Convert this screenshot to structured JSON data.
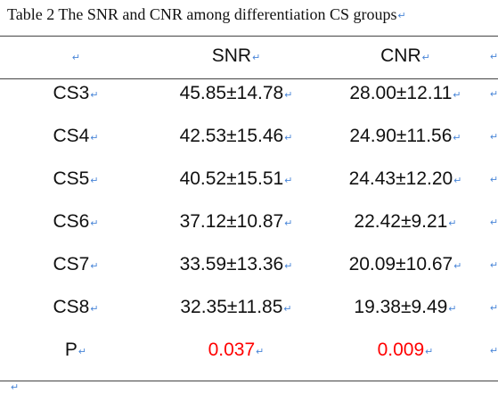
{
  "caption": "Table 2 The SNR and CNR among differentiation CS groups",
  "mark": "↵",
  "header": {
    "col0": "",
    "col1": "SNR",
    "col2": "CNR"
  },
  "rows": [
    {
      "group": "CS3",
      "snr": "45.85±14.78",
      "cnr": "28.00±12.11"
    },
    {
      "group": "CS4",
      "snr": "42.53±15.46",
      "cnr": "24.90±11.56"
    },
    {
      "group": "CS5",
      "snr": "40.52±15.51",
      "cnr": "24.43±12.20"
    },
    {
      "group": "CS6",
      "snr": "37.12±10.87",
      "cnr": "22.42±9.21"
    },
    {
      "group": "CS7",
      "snr": "33.59±13.36",
      "cnr": "20.09±10.67"
    },
    {
      "group": "CS8",
      "snr": "32.35±11.85",
      "cnr": "19.38±9.49"
    }
  ],
  "p_row": {
    "label": "P",
    "snr": "0.037",
    "cnr": "0.009"
  },
  "colors": {
    "p_value": "#ff0000",
    "paragraph_mark": "#4a86d8"
  }
}
